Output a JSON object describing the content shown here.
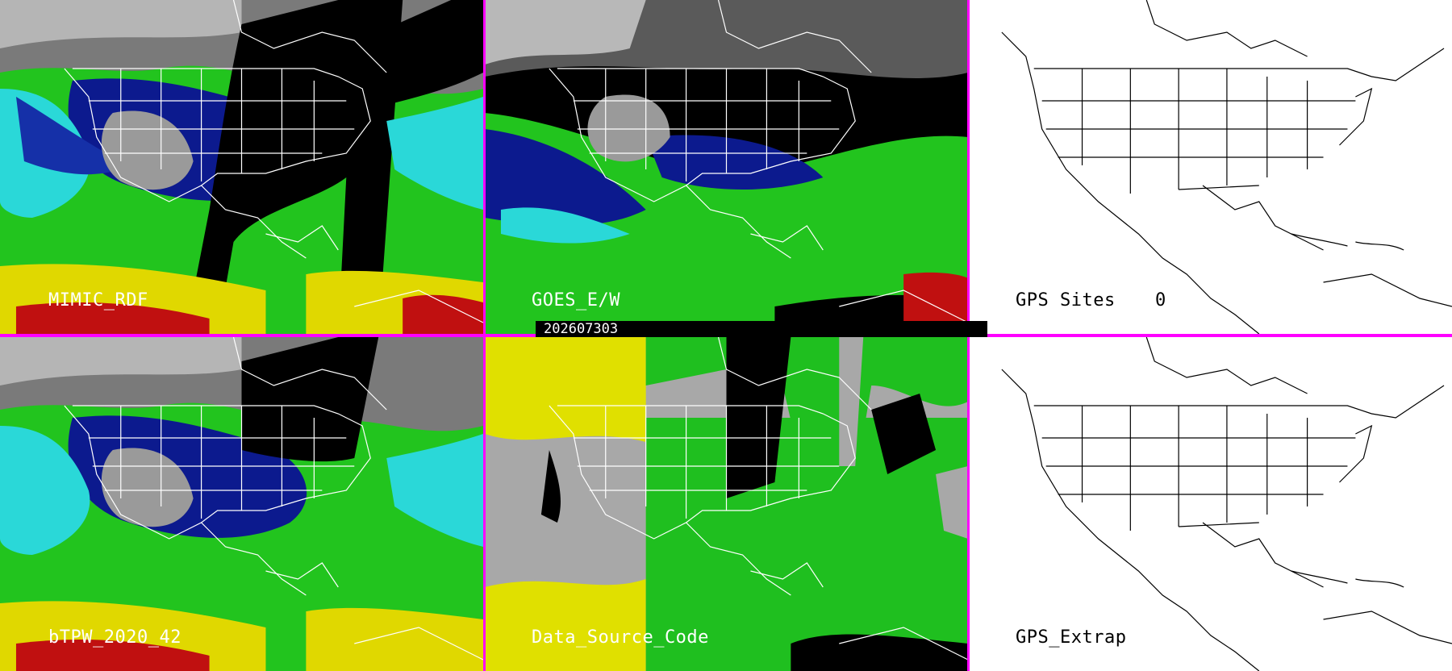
{
  "date_label": "202607303",
  "panels": [
    {
      "label": "MIMIC_RDF",
      "theme": "moisture"
    },
    {
      "label": "GOES_E/W",
      "theme": "goes"
    },
    {
      "label": "GPS Sites",
      "count": "0",
      "theme": "blank"
    },
    {
      "label": "bTPW_2020_42",
      "theme": "moisture"
    },
    {
      "label": "Data_Source_Code",
      "theme": "source"
    },
    {
      "label": "GPS_Extrap",
      "theme": "blank"
    }
  ],
  "colors": {
    "separator": "#ff00ff",
    "very_dry": "#a0a0a0",
    "dry_blue": "#0a1e9e",
    "cyan": "#2fe0e0",
    "green": "#22d020",
    "yellow": "#e8e000",
    "red": "#c01010",
    "source_yellow": "#e0e000",
    "source_green": "#1fbf1f",
    "source_gray": "#a8a8a8"
  }
}
